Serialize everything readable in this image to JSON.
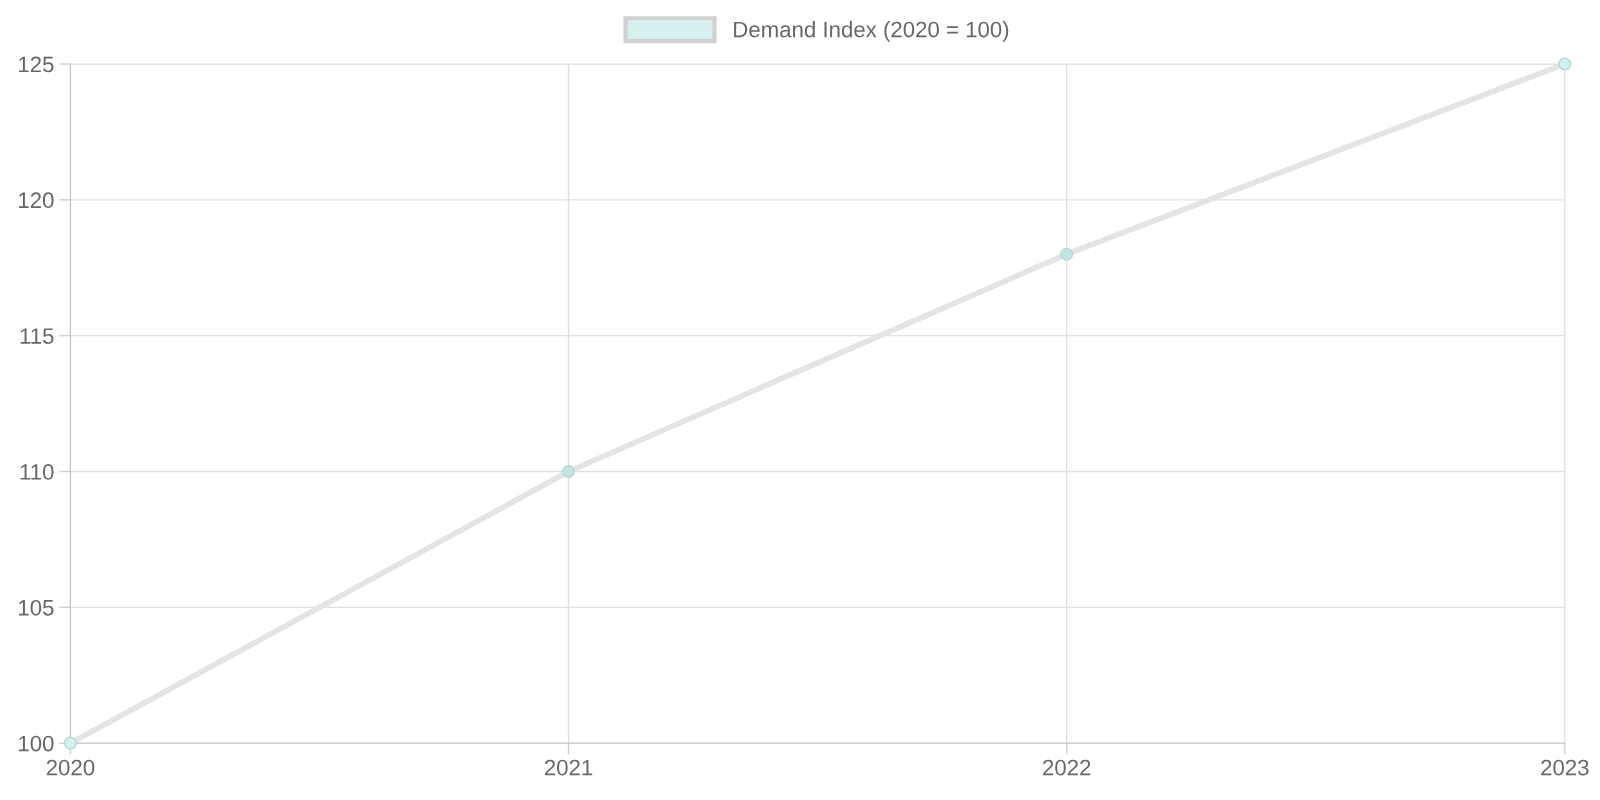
{
  "chart_data": {
    "type": "line",
    "categories": [
      "2020",
      "2021",
      "2022",
      "2023"
    ],
    "series": [
      {
        "name": "Demand Index (2020 = 100)",
        "color": "#e4e4e4",
        "colors": [
          "#d5f0ef",
          "#c4e4e2",
          "#c4e4e2",
          "#d5f0ef"
        ],
        "values": [
          100,
          110,
          118,
          125
        ]
      }
    ],
    "ylim": [
      100,
      125
    ],
    "yticks": [
      100,
      105,
      110,
      115,
      120,
      125
    ],
    "grid": true,
    "legend": "top",
    "marker": "circle",
    "line_style": "solid"
  }
}
